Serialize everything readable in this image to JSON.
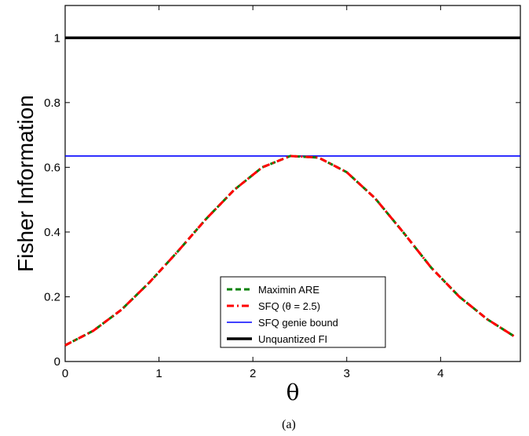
{
  "chart_data": {
    "type": "line",
    "title": "",
    "xlabel": "θ",
    "ylabel": "Fisher Information",
    "caption": "(a)",
    "xlim": [
      0,
      4.85
    ],
    "ylim": [
      0,
      1.1
    ],
    "xticks": [
      0,
      1,
      2,
      3,
      4
    ],
    "yticks": [
      0,
      0.2,
      0.4,
      0.6,
      0.8,
      1
    ],
    "grid": false,
    "legend_position": "bottom-center",
    "series": [
      {
        "name": "Maximin ARE",
        "color": "#008000",
        "style": "dashed",
        "x": [
          0,
          0.3,
          0.6,
          0.9,
          1.2,
          1.5,
          1.8,
          2.1,
          2.4,
          2.7,
          3.0,
          3.3,
          3.6,
          3.9,
          4.2,
          4.5,
          4.8
        ],
        "y": [
          0.05,
          0.095,
          0.16,
          0.245,
          0.34,
          0.44,
          0.53,
          0.6,
          0.635,
          0.63,
          0.585,
          0.505,
          0.4,
          0.29,
          0.2,
          0.13,
          0.075
        ]
      },
      {
        "name": "SFQ (θ = 2.5)",
        "color": "#ff0000",
        "style": "dashdot",
        "x": [
          0,
          0.3,
          0.6,
          0.9,
          1.2,
          1.5,
          1.8,
          2.1,
          2.4,
          2.7,
          3.0,
          3.3,
          3.6,
          3.9,
          4.2,
          4.5,
          4.8
        ],
        "y": [
          0.05,
          0.095,
          0.16,
          0.245,
          0.34,
          0.44,
          0.53,
          0.6,
          0.635,
          0.63,
          0.585,
          0.505,
          0.4,
          0.29,
          0.2,
          0.13,
          0.075
        ]
      },
      {
        "name": "SFQ genie bound",
        "color": "#0000ff",
        "style": "solid",
        "x": [
          0,
          4.85
        ],
        "y": [
          0.635,
          0.635
        ]
      },
      {
        "name": "Unquantized FI",
        "color": "#000000",
        "style": "solid-thick",
        "x": [
          0,
          4.85
        ],
        "y": [
          1,
          1
        ]
      }
    ]
  }
}
